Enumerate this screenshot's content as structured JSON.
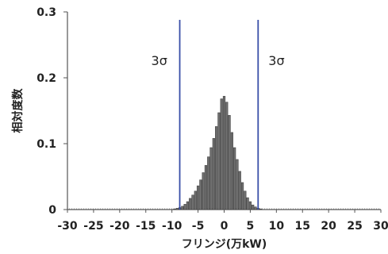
{
  "chart_data": {
    "type": "bar",
    "xlabel": "フリンジ(万kW)",
    "ylabel": "相対度数",
    "xlim": [
      -30,
      30
    ],
    "ylim": [
      0,
      0.3
    ],
    "x_ticks": [
      -30,
      -25,
      -20,
      -15,
      -10,
      -5,
      0,
      5,
      10,
      15,
      20,
      25,
      30
    ],
    "y_ticks": [
      0,
      0.1,
      0.2,
      0.3
    ],
    "x_tick_labels": [
      "-30",
      "-25",
      "-20",
      "-15",
      "-10",
      "-5",
      "0",
      "5",
      "10",
      "15",
      "20",
      "25",
      "30"
    ],
    "y_tick_labels": [
      "0",
      "0.1",
      "0.2",
      "0.3"
    ],
    "bar_width": 0.4,
    "bar_color": "#6f6f6f",
    "line_color": "#3a4fa8",
    "x": [
      -9.5,
      -9,
      -8.5,
      -8,
      -7.5,
      -7,
      -6.5,
      -6,
      -5.5,
      -5,
      -4.5,
      -4,
      -3.5,
      -3,
      -2.5,
      -2,
      -1.5,
      -1,
      -0.5,
      0,
      0.5,
      1,
      1.5,
      2,
      2.5,
      3,
      3.5,
      4,
      4.5,
      5,
      5.5,
      6,
      6.5,
      7
    ],
    "values": [
      0.001,
      0.002,
      0.003,
      0.005,
      0.008,
      0.012,
      0.017,
      0.022,
      0.028,
      0.036,
      0.045,
      0.056,
      0.067,
      0.08,
      0.094,
      0.108,
      0.126,
      0.147,
      0.168,
      0.172,
      0.163,
      0.143,
      0.117,
      0.094,
      0.076,
      0.058,
      0.041,
      0.028,
      0.018,
      0.012,
      0.007,
      0.004,
      0.002,
      0.001
    ],
    "vlines": [
      {
        "x": -8.5,
        "label": "3σ"
      },
      {
        "x": 6.5,
        "label": "3σ"
      }
    ]
  }
}
